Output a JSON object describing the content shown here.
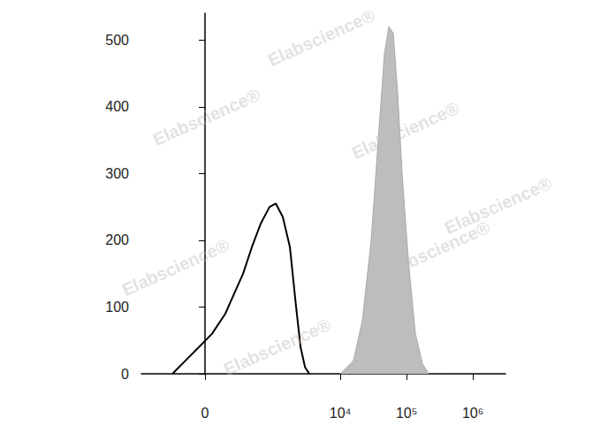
{
  "chart_data": {
    "type": "line",
    "log": "x",
    "grid": false,
    "annotations": [
      "Elabscience®"
    ],
    "xlim": [
      -820,
      3100000
    ],
    "xticks": [
      {
        "value": 0,
        "label": "0"
      },
      {
        "value": 10000,
        "label": "10⁴"
      },
      {
        "value": 100000,
        "label": "10⁵"
      },
      {
        "value": 1000000,
        "label": "10⁶"
      }
    ],
    "ylim": [
      0,
      540
    ],
    "yticks": [
      0,
      100,
      200,
      300,
      400,
      500
    ],
    "series": [
      {
        "type": "line",
        "color": "#000000",
        "x": [
          -253,
          -132,
          -39,
          45,
          139,
          217,
          317,
          446,
          617,
          846,
          1054,
          1349,
          1729,
          2148,
          2510,
          2930,
          3400
        ],
        "values": [
          0,
          20,
          40,
          60,
          90,
          120,
          150,
          190,
          225,
          250,
          255,
          235,
          190,
          100,
          40,
          10,
          0
        ]
      },
      {
        "type": "area",
        "color": "#bdbdbd",
        "x": [
          10000,
          15800,
          21500,
          29200,
          37300,
          46300,
          54000,
          62900,
          73300,
          85500,
          106000,
          135600,
          173400,
          215000
        ],
        "values": [
          0,
          20,
          80,
          200,
          350,
          480,
          520,
          510,
          420,
          300,
          170,
          60,
          15,
          0
        ]
      }
    ]
  }
}
